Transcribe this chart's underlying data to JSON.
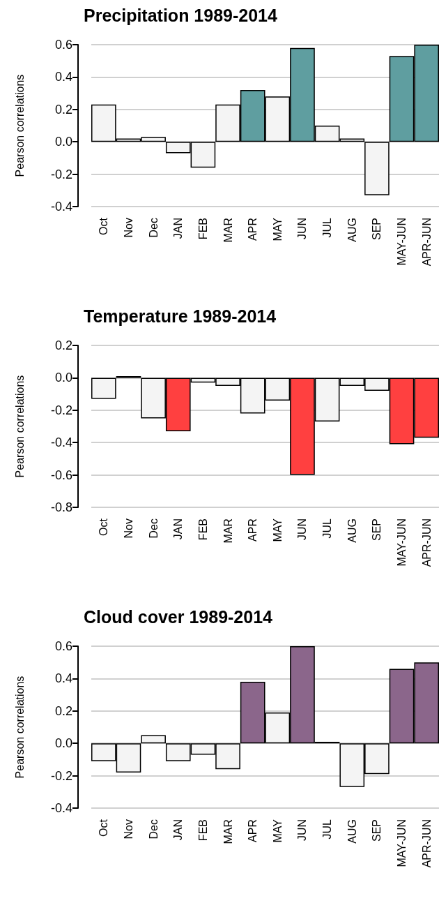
{
  "chart_data": [
    {
      "type": "bar",
      "title": "Precipitation 1989-2014",
      "ylabel": "Pearson correlations",
      "categories": [
        "Oct",
        "Nov",
        "Dec",
        "JAN",
        "FEB",
        "MAR",
        "APR",
        "MAY",
        "JUN",
        "JUL",
        "AUG",
        "SEP",
        "MAY-JUN",
        "APR-JUN"
      ],
      "values": [
        0.23,
        0.02,
        0.03,
        -0.07,
        -0.16,
        0.23,
        0.32,
        0.28,
        0.58,
        0.1,
        0.02,
        -0.33,
        0.53,
        0.6
      ],
      "colors": [
        "#f4f4f4",
        "#f4f4f4",
        "#f4f4f4",
        "#f4f4f4",
        "#f4f4f4",
        "#f4f4f4",
        "#5f9ea0",
        "#f4f4f4",
        "#5f9ea0",
        "#f4f4f4",
        "#f4f4f4",
        "#f4f4f4",
        "#5f9ea0",
        "#5f9ea0"
      ],
      "ylim": [
        -0.4,
        0.6
      ],
      "yticks": [
        {
          "value": -0.4,
          "label": "-0.4"
        },
        {
          "value": -0.2,
          "label": "-0.2"
        },
        {
          "value": 0,
          "label": "0.0"
        },
        {
          "value": 0.2,
          "label": "0.2"
        },
        {
          "value": 0.4,
          "label": "0.4"
        },
        {
          "value": 0.6,
          "label": "0.6"
        }
      ],
      "grid": "y"
    },
    {
      "type": "bar",
      "title": "Temperature 1989-2014",
      "ylabel": "Pearson correlations",
      "categories": [
        "Oct",
        "Nov",
        "Dec",
        "JAN",
        "FEB",
        "MAR",
        "APR",
        "MAY",
        "JUN",
        "JUL",
        "AUG",
        "SEP",
        "MAY-JUN",
        "APR-JUN"
      ],
      "values": [
        -0.13,
        0.01,
        -0.25,
        -0.33,
        -0.03,
        -0.05,
        -0.22,
        -0.14,
        -0.6,
        -0.27,
        -0.05,
        -0.08,
        -0.41,
        -0.37
      ],
      "colors": [
        "#f4f4f4",
        "#f4f4f4",
        "#f4f4f4",
        "#ff4040",
        "#f4f4f4",
        "#f4f4f4",
        "#f4f4f4",
        "#f4f4f4",
        "#ff4040",
        "#f4f4f4",
        "#f4f4f4",
        "#f4f4f4",
        "#ff4040",
        "#ff4040"
      ],
      "ylim": [
        -0.8,
        0.2
      ],
      "yticks": [
        {
          "value": -0.8,
          "label": "-0.8"
        },
        {
          "value": -0.6,
          "label": "-0.6"
        },
        {
          "value": -0.4,
          "label": "-0.4"
        },
        {
          "value": -0.2,
          "label": "-0.2"
        },
        {
          "value": 0,
          "label": "0.0"
        },
        {
          "value": 0.2,
          "label": "0.2"
        }
      ],
      "grid": "y"
    },
    {
      "type": "bar",
      "title": "Cloud cover 1989-2014",
      "ylabel": "Pearson correlations",
      "categories": [
        "Oct",
        "Nov",
        "Dec",
        "JAN",
        "FEB",
        "MAR",
        "APR",
        "MAY",
        "JUN",
        "JUL",
        "AUG",
        "SEP",
        "MAY-JUN",
        "APR-JUN"
      ],
      "values": [
        -0.11,
        -0.18,
        0.05,
        -0.11,
        -0.07,
        -0.16,
        0.38,
        0.19,
        0.6,
        0.01,
        -0.27,
        -0.19,
        0.46,
        0.5
      ],
      "colors": [
        "#f4f4f4",
        "#f4f4f4",
        "#f4f4f4",
        "#f4f4f4",
        "#f4f4f4",
        "#f4f4f4",
        "#8b668b",
        "#f4f4f4",
        "#8b668b",
        "#f4f4f4",
        "#f4f4f4",
        "#f4f4f4",
        "#8b668b",
        "#8b668b"
      ],
      "ylim": [
        -0.4,
        0.6
      ],
      "yticks": [
        {
          "value": -0.4,
          "label": "-0.4"
        },
        {
          "value": -0.2,
          "label": "-0.2"
        },
        {
          "value": 0,
          "label": "0.0"
        },
        {
          "value": 0.2,
          "label": "0.2"
        },
        {
          "value": 0.4,
          "label": "0.4"
        },
        {
          "value": 0.6,
          "label": "0.6"
        }
      ],
      "grid": "y"
    }
  ]
}
